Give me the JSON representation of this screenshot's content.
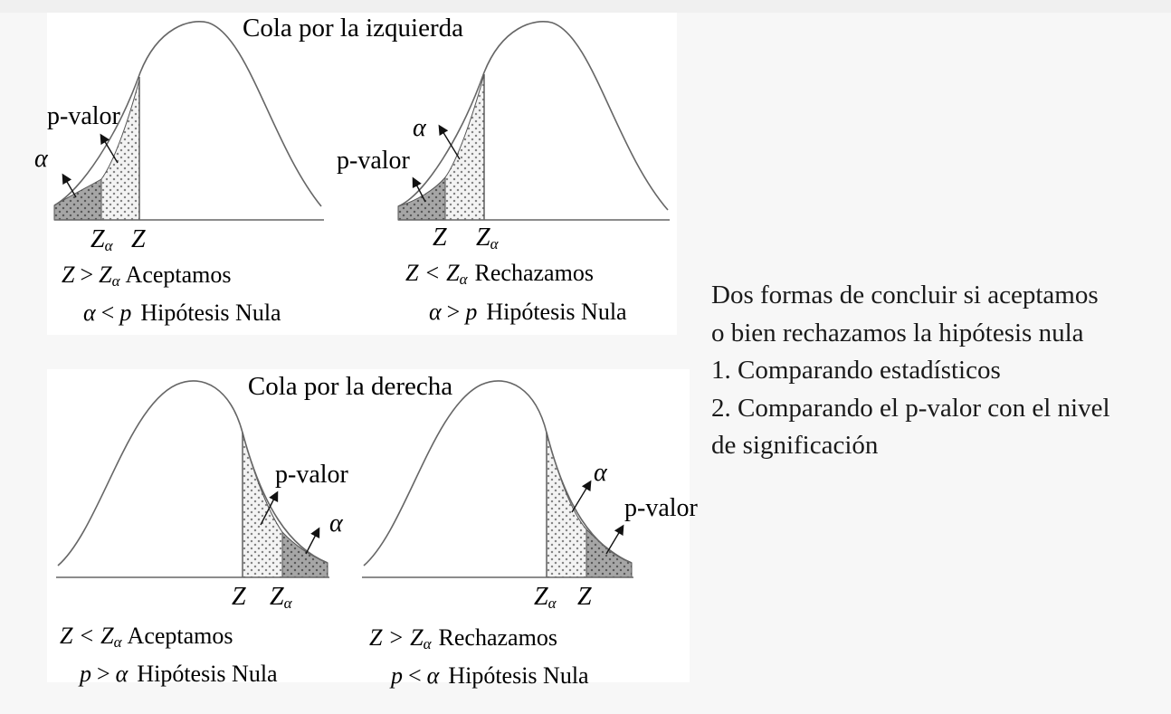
{
  "diagram": {
    "left_tail": {
      "title": "Cola por la izquierda",
      "case_accept": {
        "symbols": {
          "alpha": "α",
          "p_value": "p-valor"
        },
        "axis": {
          "z_alpha": "Z",
          "z_alpha_sub": "α",
          "z": "Z"
        },
        "line1": {
          "lhs": "Z",
          "op": ">",
          "rhs": "Z",
          "rhs_sub": "α",
          "word": "Aceptamos"
        },
        "line2": {
          "lhs": "α",
          "op": "<",
          "rhs": "p",
          "word": "Hipótesis Nula"
        }
      },
      "case_reject": {
        "symbols": {
          "alpha": "α",
          "p_value": "p-valor"
        },
        "axis": {
          "z": "Z",
          "z_alpha": "Z",
          "z_alpha_sub": "α"
        },
        "line1": {
          "lhs": "Z",
          "op": "<",
          "rhs": "Z",
          "rhs_sub": "α",
          "word": "Rechazamos"
        },
        "line2": {
          "lhs": "α",
          "op": ">",
          "rhs": "p",
          "word": "Hipótesis Nula"
        }
      }
    },
    "right_tail": {
      "title": "Cola por la derecha",
      "case_accept": {
        "symbols": {
          "alpha": "α",
          "p_value": "p-valor"
        },
        "axis": {
          "z": "Z",
          "z_alpha": "Z",
          "z_alpha_sub": "α"
        },
        "line1": {
          "lhs": "Z",
          "op": "<",
          "rhs": "Z",
          "rhs_sub": "α",
          "word": "Aceptamos"
        },
        "line2": {
          "lhs": "p",
          "op": ">",
          "rhs": "α",
          "word": "Hipótesis Nula"
        }
      },
      "case_reject": {
        "symbols": {
          "alpha": "α",
          "p_value": "p-valor"
        },
        "axis": {
          "z_alpha": "Z",
          "z_alpha_sub": "α",
          "z": "Z"
        },
        "line1": {
          "lhs": "Z",
          "op": ">",
          "rhs": "Z",
          "rhs_sub": "α",
          "word": "Rechazamos"
        },
        "line2": {
          "lhs": "p",
          "op": "<",
          "rhs": "α",
          "word": "Hipótesis Nula"
        }
      }
    }
  },
  "notes": {
    "lines": [
      "Dos formas de concluir si aceptamos",
      "o bien rechazamos la hipótesis nula",
      "1. Comparando estadísticos",
      "2. Comparando el p-valor con el nivel",
      "de significación"
    ]
  },
  "colors": {
    "curve": "#555555",
    "alpha_fill": "#a6a6a6",
    "pvalue_fill": "#f2f2f2",
    "text": "#1a1a1a"
  }
}
